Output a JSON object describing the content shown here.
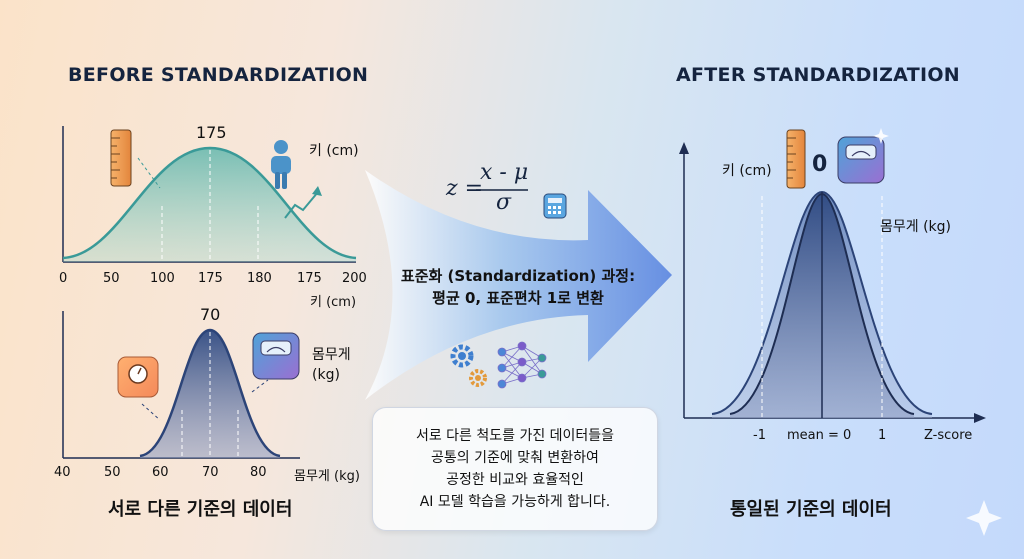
{
  "before": {
    "title": "BEFORE STANDARDIZATION",
    "height_chart": {
      "peak_label": "175",
      "unit_label": "키 (cm)",
      "axis_label": "키 (cm)",
      "ticks": [
        "0",
        "50",
        "100",
        "175",
        "180",
        "175",
        "200"
      ]
    },
    "weight_chart": {
      "peak_label": "70",
      "unit_label_line1": "몸무게",
      "unit_label_line2": "(kg)",
      "axis_label": "몸무게 (kg)",
      "ticks": [
        "40",
        "50",
        "60",
        "70",
        "80"
      ]
    },
    "caption": "서로 다른 기준의 데이터"
  },
  "middle": {
    "formula": {
      "lhs": "z =",
      "numerator": "x - μ",
      "denominator": "σ"
    },
    "process_line1": "표준화 (Standardization) 과정:",
    "process_line2": "평균 0, 표준편차 1로 변환",
    "note_lines": [
      "서로 다른 척도를 가진 데이터들을",
      "공통의 기준에 맞춰 변환하여",
      "공정한 비교와 효율적인",
      "AI 모델 학습을 가능하게 합니다."
    ]
  },
  "after": {
    "title": "AFTER STANDARDIZATION",
    "peak_label": "0",
    "height_label": "키 (cm)",
    "weight_label": "몸무게 (kg)",
    "ticks": [
      "-1",
      "mean = 0",
      "1"
    ],
    "axis_label": "Z-score",
    "caption": "통일된 기준의 데이터"
  },
  "colors": {
    "teal": "#3a9a98",
    "navy": "#2c4478",
    "axis": "#1e2d52",
    "arrow_start": "#ffffff",
    "arrow_end": "#5f8ee6"
  }
}
